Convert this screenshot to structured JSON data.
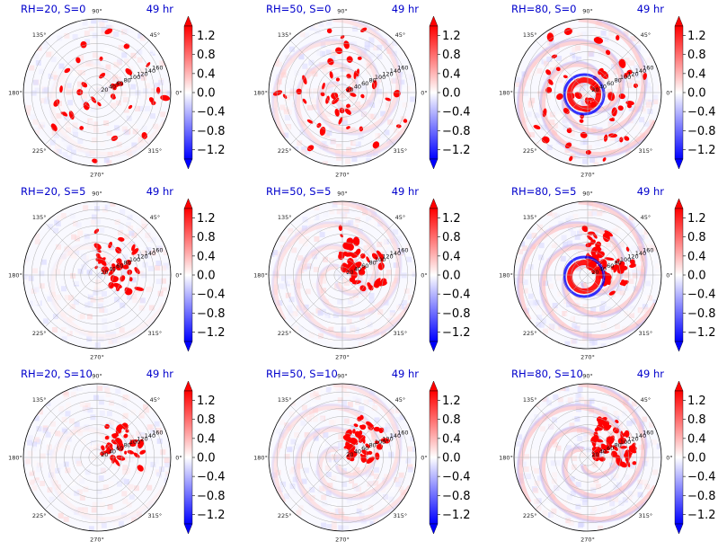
{
  "figure_title": "",
  "chart_data": {
    "type": "heatmap",
    "projection": "polar",
    "grid": true,
    "colormap": {
      "name": "bwr",
      "min_color": "#0000ff",
      "mid_color": "#ffffff",
      "max_color": "#ff0000",
      "extend": "both"
    },
    "vmin": -1.4,
    "vmax": 1.4,
    "colorbar_ticks": [
      1.2,
      0.8,
      0.4,
      0.0,
      -0.4,
      -0.8,
      -1.2
    ],
    "colorbar_tick_labels": [
      "1.2",
      "0.8",
      "0.4",
      "0.0",
      "−0.4",
      "−0.8",
      "−1.2"
    ],
    "angle_ticks": [
      0,
      45,
      90,
      135,
      180,
      225,
      270,
      315
    ],
    "angle_tick_labels": [
      "0°",
      "45°",
      "90°",
      "135°",
      "180°",
      "225°",
      "270°",
      "315°"
    ],
    "radial_ticks": [
      20,
      40,
      60,
      80,
      100,
      120,
      140,
      160
    ],
    "radial_tick_labels": [
      "20",
      "40",
      "60",
      "80",
      "100",
      "120",
      "140",
      "160"
    ],
    "rmax": 180,
    "radial_label_angle": 22.5,
    "panels": [
      {
        "title": "RH=20, S=0",
        "time_label": "49 hr",
        "RH": 20,
        "S": 0,
        "pattern": "scattered"
      },
      {
        "title": "RH=50, S=0",
        "time_label": "49 hr",
        "RH": 50,
        "S": 0,
        "pattern": "spiral"
      },
      {
        "title": "RH=80, S=0",
        "time_label": "49 hr",
        "RH": 80,
        "S": 0,
        "pattern": "spiral-strong"
      },
      {
        "title": "RH=20, S=5",
        "time_label": "49 hr",
        "RH": 20,
        "S": 5,
        "pattern": "cluster-ne"
      },
      {
        "title": "RH=50, S=5",
        "time_label": "49 hr",
        "RH": 50,
        "S": 5,
        "pattern": "arcs"
      },
      {
        "title": "RH=80, S=5",
        "time_label": "49 hr",
        "RH": 80,
        "S": 5,
        "pattern": "eyewall"
      },
      {
        "title": "RH=20, S=10",
        "time_label": "49 hr",
        "RH": 20,
        "S": 10,
        "pattern": "cluster-n"
      },
      {
        "title": "RH=50, S=10",
        "time_label": "49 hr",
        "RH": 50,
        "S": 10,
        "pattern": "band-ne"
      },
      {
        "title": "RH=80, S=10",
        "time_label": "49 hr",
        "RH": 80,
        "S": 10,
        "pattern": "band-strong"
      }
    ]
  }
}
